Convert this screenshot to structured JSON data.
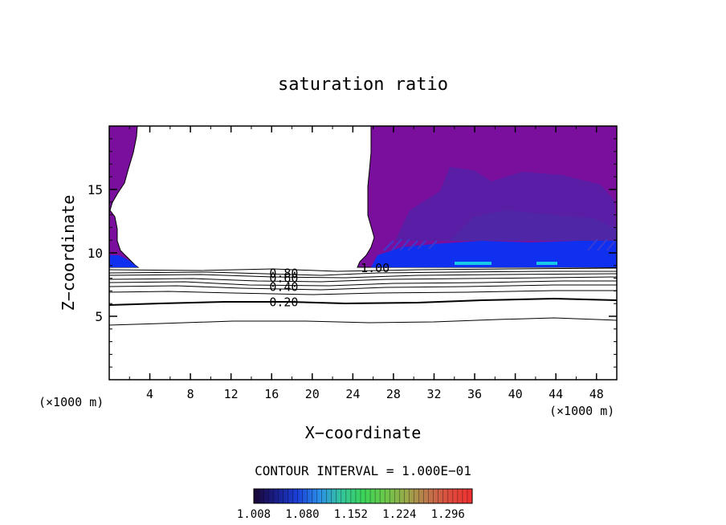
{
  "chart_data": {
    "type": "contour",
    "title": "saturation ratio",
    "xlabel": "X−coordinate",
    "ylabel": "Z−coordinate",
    "x_unit_left": "(×1000 m)",
    "x_unit_right": "(×1000 m)",
    "xlim": [
      0,
      50
    ],
    "ylim": [
      0,
      20
    ],
    "x_ticks": [
      4,
      8,
      12,
      16,
      20,
      24,
      28,
      32,
      36,
      40,
      44,
      48
    ],
    "y_ticks": [
      5,
      10,
      15
    ],
    "x_tick_labels": [
      "4",
      "8",
      "12",
      "16",
      "20",
      "24",
      "28",
      "32",
      "36",
      "40",
      "44",
      "48"
    ],
    "y_tick_labels": [
      "5",
      "10",
      "15"
    ],
    "contour_interval_label": "CONTOUR INTERVAL = 1.000E−01",
    "contour_labels": [
      {
        "text": "0.80",
        "x": 17.2,
        "z": 8.4
      },
      {
        "text": "0.60",
        "x": 17.2,
        "z": 8.0
      },
      {
        "text": "0.40",
        "x": 17.2,
        "z": 7.3
      },
      {
        "text": "0.20",
        "x": 17.2,
        "z": 6.1
      },
      {
        "text": "1.00",
        "x": 26.2,
        "z": 8.8
      }
    ],
    "colorbar": {
      "min": 1.008,
      "max": 1.332,
      "tick_labels": [
        "1.008",
        "1.080",
        "1.152",
        "1.224",
        "1.296"
      ],
      "colors": [
        "#1a0636",
        "#1a1e8a",
        "#1a40d8",
        "#2a8ee8",
        "#34c49c",
        "#3ad45a",
        "#6ac84a",
        "#9aa84a",
        "#c0744c",
        "#de4a3c",
        "#f03030"
      ]
    },
    "colors": {
      "supersat_purple": "#7a0f9e",
      "supersat_violet": "#5a1ea6",
      "supersat_blue": "#1030f0",
      "supersat_cyan": "#18c8e8"
    }
  }
}
